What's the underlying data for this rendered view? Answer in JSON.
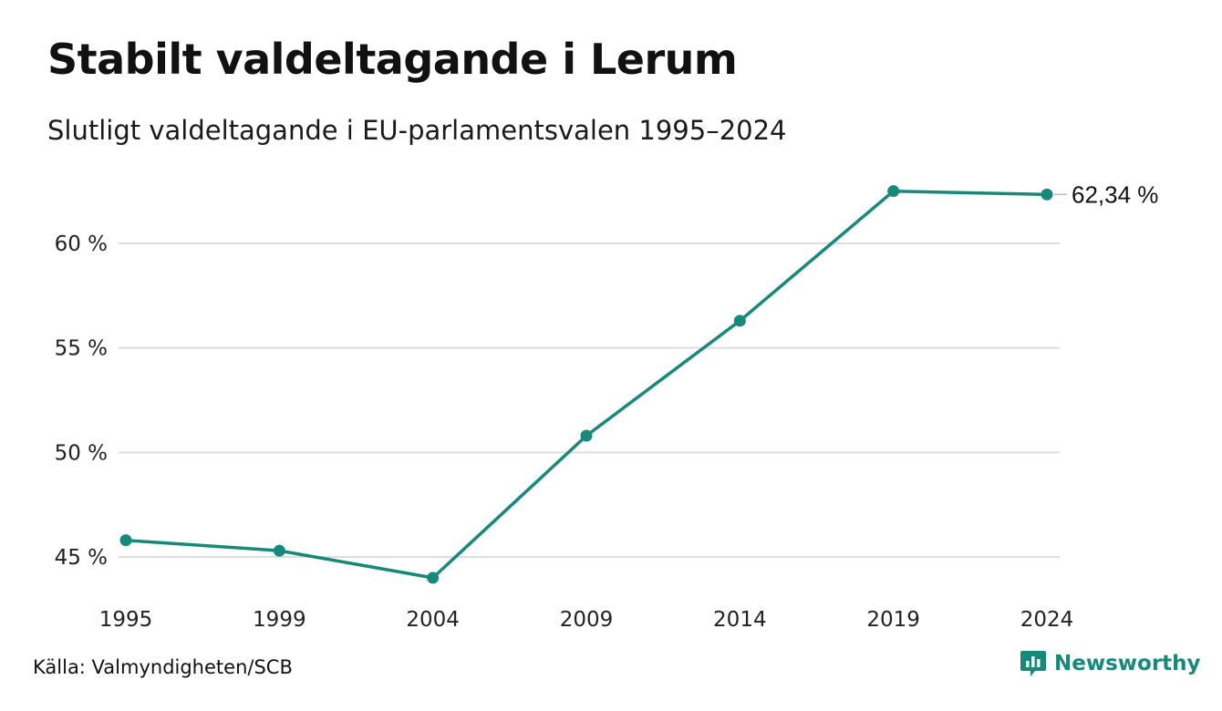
{
  "chart_data": {
    "type": "line",
    "title": "Stabilt valdeltagande i Lerum",
    "subtitle": "Slutligt valdeltagande i EU-parlamentsvalen 1995–2024",
    "x": [
      "1995",
      "1999",
      "2004",
      "2009",
      "2014",
      "2019",
      "2024"
    ],
    "series": [
      {
        "values": [
          45.8,
          45.3,
          44.0,
          50.8,
          56.3,
          62.5,
          62.34
        ]
      }
    ],
    "yticks": [
      45,
      50,
      55,
      60
    ],
    "ytick_labels": [
      "45 %",
      "50 %",
      "55 %",
      "60 %"
    ],
    "ylim": [
      43.5,
      63.5
    ],
    "grid": true,
    "end_label": "62,34 %",
    "line_color": "#17897a"
  },
  "footer": {
    "source": "Källa: Valmyndigheten/SCB",
    "brand": "Newsworthy"
  }
}
